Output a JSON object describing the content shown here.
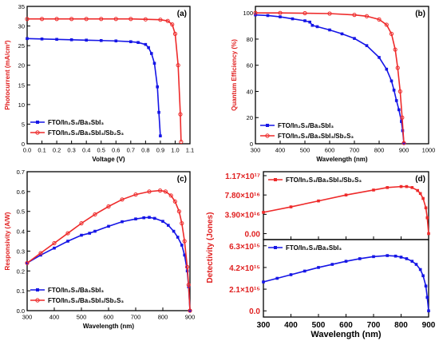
{
  "colors": {
    "series_blue": "#1515e6",
    "series_red": "#ee2a2a",
    "axis_left_red": "#e02020",
    "axis_black": "#000000"
  },
  "chart_data": [
    {
      "panel_label": "(a)",
      "type": "line",
      "xlabel": "Voltage (V)",
      "ylabel": "Photocurrent (mA/cm²)",
      "xlim": [
        0,
        1.1
      ],
      "ylim": [
        0,
        35
      ],
      "x_ticks": [
        "0.0",
        "0.1",
        "0.2",
        "0.3",
        "0.4",
        "0.5",
        "0.6",
        "0.7",
        "0.8",
        "0.9",
        "1.0",
        "1.1"
      ],
      "y_ticks": [
        "0",
        "5",
        "10",
        "15",
        "20",
        "25",
        "30",
        "35"
      ],
      "legend_position": "bottom-left",
      "series": [
        {
          "name": "FTO/In₂S₃/Ba₃SbI₃",
          "color": "#1515e6",
          "x": [
            0.0,
            0.1,
            0.2,
            0.3,
            0.4,
            0.5,
            0.6,
            0.7,
            0.75,
            0.8,
            0.82,
            0.84,
            0.86,
            0.88,
            0.89,
            0.9
          ],
          "y": [
            26.8,
            26.7,
            26.6,
            26.5,
            26.4,
            26.3,
            26.2,
            26.0,
            25.8,
            25.3,
            24.5,
            23.0,
            20.5,
            14.5,
            8.0,
            2.0
          ]
        },
        {
          "name": "FTO/In₂S₃/Ba₃SbI₃/Sb₂S₃",
          "color": "#ee2a2a",
          "x": [
            0.0,
            0.1,
            0.2,
            0.3,
            0.4,
            0.5,
            0.6,
            0.7,
            0.8,
            0.9,
            0.95,
            0.98,
            1.0,
            1.02,
            1.035,
            1.04
          ],
          "y": [
            31.8,
            31.8,
            31.8,
            31.8,
            31.8,
            31.8,
            31.8,
            31.8,
            31.7,
            31.6,
            31.3,
            30.4,
            28.0,
            20.0,
            7.5,
            0.5
          ]
        }
      ]
    },
    {
      "panel_label": "(b)",
      "type": "line",
      "xlabel": "Wavelength (nm)",
      "ylabel": "Quantum Efficiency (%)",
      "xlim": [
        300,
        1000
      ],
      "ylim": [
        0,
        105
      ],
      "x_ticks": [
        "300",
        "400",
        "500",
        "600",
        "700",
        "800",
        "900",
        "1000"
      ],
      "y_ticks": [
        "0",
        "20",
        "40",
        "60",
        "80",
        "100"
      ],
      "legend_position": "bottom-left",
      "series": [
        {
          "name": "FTO/In₂S₃/Ba₃SbI₃",
          "color": "#1515e6",
          "x": [
            300,
            350,
            400,
            450,
            500,
            520,
            530,
            550,
            600,
            650,
            700,
            750,
            800,
            830,
            850,
            860,
            870,
            880,
            890,
            895,
            900
          ],
          "y": [
            98.5,
            98.0,
            97.0,
            95.5,
            94.0,
            93.0,
            90.5,
            89.5,
            87.0,
            84.0,
            80.5,
            75.0,
            66.0,
            57.0,
            48.0,
            41.0,
            33.0,
            26.0,
            17.0,
            10.0,
            0.5
          ]
        },
        {
          "name": "FTO/In₂S₃/Ba₃SbI₃/Sb₂S₃",
          "color": "#ee2a2a",
          "x": [
            300,
            400,
            500,
            600,
            700,
            750,
            800,
            830,
            850,
            865,
            875,
            885,
            893,
            900
          ],
          "y": [
            100.0,
            100.0,
            99.8,
            99.5,
            98.5,
            97.5,
            95.0,
            91.0,
            84.0,
            72.0,
            58.0,
            40.0,
            20.0,
            0.5
          ]
        }
      ]
    },
    {
      "panel_label": "(c)",
      "type": "line",
      "xlabel": "Wavelength (nm)",
      "ylabel": "Responsivity (A/W)",
      "xlim": [
        300,
        900
      ],
      "ylim": [
        0.0,
        0.7
      ],
      "x_ticks": [
        "300",
        "400",
        "500",
        "600",
        "700",
        "800",
        "900"
      ],
      "y_ticks": [
        "0.0",
        "0.1",
        "0.2",
        "0.3",
        "0.4",
        "0.5",
        "0.6",
        "0.7"
      ],
      "legend_position": "bottom-left",
      "series": [
        {
          "name": "FTO/In₂S₃/Ba₃SbI₃",
          "color": "#1515e6",
          "x": [
            300,
            350,
            400,
            450,
            500,
            530,
            550,
            600,
            650,
            700,
            730,
            750,
            770,
            800,
            820,
            840,
            855,
            870,
            880,
            890,
            895,
            900
          ],
          "y": [
            0.24,
            0.28,
            0.315,
            0.35,
            0.38,
            0.39,
            0.4,
            0.425,
            0.448,
            0.462,
            0.468,
            0.47,
            0.465,
            0.45,
            0.43,
            0.4,
            0.37,
            0.33,
            0.28,
            0.2,
            0.12,
            0.0
          ]
        },
        {
          "name": "FTO/In₂S₃/Ba₃SbI₃/Sb₂S₃",
          "color": "#ee2a2a",
          "x": [
            300,
            350,
            400,
            450,
            500,
            550,
            600,
            650,
            700,
            750,
            790,
            810,
            830,
            845,
            860,
            870,
            880,
            890,
            895,
            900
          ],
          "y": [
            0.24,
            0.29,
            0.34,
            0.39,
            0.44,
            0.485,
            0.525,
            0.56,
            0.585,
            0.6,
            0.605,
            0.6,
            0.58,
            0.55,
            0.5,
            0.44,
            0.35,
            0.22,
            0.13,
            0.0
          ]
        }
      ]
    },
    {
      "panel_label": "(d)",
      "type": "line",
      "xlabel": "Wavelength (nm)",
      "ylabel": "Detectivity (Jones)",
      "x_ticks": [
        "300",
        "400",
        "500",
        "600",
        "700",
        "800",
        "900"
      ],
      "xlim": [
        300,
        900
      ],
      "subplots": [
        {
          "position": "top",
          "ylim": [
            -1.2e+16,
            1.25e+17
          ],
          "y_tick_values": [
            0,
            3.9e+16,
            7.8e+16,
            1.17e+17
          ],
          "y_ticks": [
            "0.00",
            "3.90×10¹⁶",
            "7.80×10¹⁶",
            "1.17×10¹⁷"
          ],
          "legend_position": "top-left",
          "series": [
            {
              "name": "FTO/In₂S₃/Ba₃SbI₃/Sb₂S₃",
              "color": "#ee2a2a",
              "x": [
                300,
                400,
                500,
                600,
                700,
                750,
                800,
                820,
                840,
                860,
                870,
                880,
                890,
                895,
                900
              ],
              "y": [
                4.3e+16,
                5.4e+16,
                6.6e+16,
                7.8e+16,
                8.8e+16,
                9.3e+16,
                9.5e+16,
                9.5e+16,
                9.3e+16,
                8.7e+16,
                8.1e+16,
                7.1e+16,
                5.2e+16,
                3.2e+16,
                0.0
              ]
            }
          ]
        },
        {
          "position": "bottom",
          "ylim": [
            -600000000000000.0,
            6900000000000000.0
          ],
          "y_tick_values": [
            0,
            2100000000000000.0,
            4200000000000000.0,
            6300000000000000.0
          ],
          "y_ticks": [
            "0.0",
            "2.1×10¹⁵",
            "4.2×10¹⁵",
            "6.3×10¹⁵"
          ],
          "legend_position": "top-left",
          "series": [
            {
              "name": "FTO/In₂S₃/Ba₃SbI₃",
              "color": "#1515e6",
              "x": [
                300,
                350,
                400,
                450,
                500,
                550,
                600,
                650,
                700,
                750,
                780,
                800,
                820,
                840,
                855,
                870,
                880,
                890,
                895,
                900
              ],
              "y": [
                2800000000000000.0,
                3150000000000000.0,
                3500000000000000.0,
                3850000000000000.0,
                4200000000000000.0,
                4500000000000000.0,
                4800000000000000.0,
                5050000000000000.0,
                5250000000000000.0,
                5350000000000000.0,
                5300000000000000.0,
                5200000000000000.0,
                5050000000000000.0,
                4800000000000000.0,
                4500000000000000.0,
                4000000000000000.0,
                3400000000000000.0,
                2400000000000000.0,
                1300000000000000.0,
                0.0
              ]
            }
          ]
        }
      ]
    }
  ]
}
